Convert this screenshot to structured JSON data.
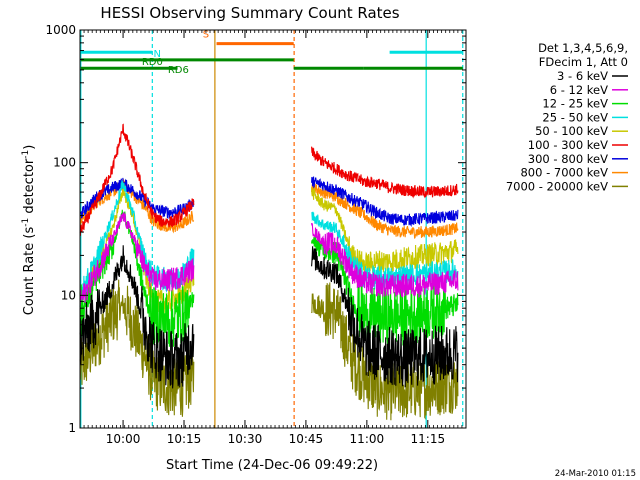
{
  "chart_data": {
    "type": "line",
    "title": "HESSI Observing Summary Count Rates",
    "xlabel": "Start Time (24-Dec-06 09:49:22)",
    "ylabel_main": "Count Rate (s",
    "ylabel_sup1": "-1",
    "ylabel_mid": " detector",
    "ylabel_sup2": "-1",
    "ylabel_end": ")",
    "yscale": "log",
    "ylim": [
      1,
      1000
    ],
    "xlim_minutes": [
      0,
      95
    ],
    "x_tick_labels": [
      {
        "label": "10:00",
        "minute": 10.6
      },
      {
        "label": "10:15",
        "minute": 25.6
      },
      {
        "label": "10:30",
        "minute": 40.6
      },
      {
        "label": "10:45",
        "minute": 55.6
      },
      {
        "label": "11:00",
        "minute": 70.6
      },
      {
        "label": "11:15",
        "minute": 85.6
      }
    ],
    "y_tick_labels": [
      {
        "label": "1",
        "value": 1
      },
      {
        "label": "10",
        "value": 10
      },
      {
        "label": "100",
        "value": 100
      },
      {
        "label": "1000",
        "value": 1000
      }
    ],
    "legend_header": [
      "Det 1,3,4,5,6,9,",
      "FDecim 1, Att 0"
    ],
    "legend_placement": "right",
    "series": [
      {
        "name": "3 - 6 keV",
        "color": "#000000",
        "pre": [
          [
            0,
            4.5
          ],
          [
            4,
            7
          ],
          [
            8,
            12
          ],
          [
            10.6,
            20
          ],
          [
            13,
            13
          ],
          [
            16,
            6
          ],
          [
            18,
            4
          ],
          [
            22,
            3.3
          ],
          [
            25,
            3.3
          ],
          [
            28,
            5
          ]
        ],
        "post": [
          [
            57,
            20
          ],
          [
            60,
            16
          ],
          [
            63,
            15
          ],
          [
            65,
            10
          ],
          [
            67,
            6.5
          ],
          [
            70,
            4
          ],
          [
            73,
            3.7
          ],
          [
            76,
            3.5
          ],
          [
            80,
            3.3
          ],
          [
            85,
            3.5
          ],
          [
            90,
            3.6
          ],
          [
            93,
            3.7
          ]
        ]
      },
      {
        "name": "6 - 12 keV",
        "color": "#dd00dd",
        "pre": [
          [
            0,
            9
          ],
          [
            4,
            15
          ],
          [
            8,
            26
          ],
          [
            10.6,
            40
          ],
          [
            13,
            28
          ],
          [
            16,
            16
          ],
          [
            18,
            13
          ],
          [
            22,
            13
          ],
          [
            25,
            14
          ],
          [
            28,
            16
          ]
        ],
        "post": [
          [
            57,
            32
          ],
          [
            60,
            25
          ],
          [
            63,
            24
          ],
          [
            65,
            19
          ],
          [
            67,
            15
          ],
          [
            70,
            12.5
          ],
          [
            73,
            12
          ],
          [
            76,
            11.8
          ],
          [
            80,
            11.8
          ],
          [
            85,
            12
          ],
          [
            90,
            12.5
          ],
          [
            93,
            13
          ]
        ]
      },
      {
        "name": "12 - 25 keV",
        "color": "#00dd00",
        "pre": [
          [
            0,
            7
          ],
          [
            4,
            13
          ],
          [
            8,
            23
          ],
          [
            10.6,
            43
          ],
          [
            13,
            26
          ],
          [
            16,
            10
          ],
          [
            18,
            7
          ],
          [
            22,
            6.5
          ],
          [
            25,
            7
          ],
          [
            28,
            9
          ]
        ],
        "post": [
          [
            57,
            27
          ],
          [
            60,
            22
          ],
          [
            63,
            21
          ],
          [
            65,
            14
          ],
          [
            67,
            9
          ],
          [
            70,
            7
          ],
          [
            73,
            7
          ],
          [
            76,
            7
          ],
          [
            80,
            7
          ],
          [
            85,
            7.5
          ],
          [
            90,
            8
          ],
          [
            93,
            8.5
          ]
        ]
      },
      {
        "name": "25 - 50 keV",
        "color": "#00e0e0",
        "pre": [
          [
            0,
            10
          ],
          [
            4,
            18
          ],
          [
            8,
            40
          ],
          [
            10.6,
            70
          ],
          [
            13,
            42
          ],
          [
            16,
            18
          ],
          [
            18,
            14
          ],
          [
            22,
            13
          ],
          [
            25,
            14
          ],
          [
            28,
            20
          ]
        ],
        "post": [
          [
            57,
            40
          ],
          [
            60,
            34
          ],
          [
            63,
            32
          ],
          [
            65,
            24
          ],
          [
            67,
            17
          ],
          [
            70,
            14
          ],
          [
            73,
            13.5
          ],
          [
            76,
            13.5
          ],
          [
            80,
            14
          ],
          [
            85,
            14.5
          ],
          [
            90,
            15
          ],
          [
            93,
            15.5
          ]
        ]
      },
      {
        "name": "50 - 100 keV",
        "color": "#c8c800",
        "pre": [
          [
            0,
            9
          ],
          [
            4,
            16
          ],
          [
            8,
            32
          ],
          [
            10.6,
            62
          ],
          [
            13,
            40
          ],
          [
            16,
            15
          ],
          [
            18,
            9
          ],
          [
            22,
            9
          ],
          [
            25,
            10
          ],
          [
            28,
            14
          ]
        ],
        "post": [
          [
            57,
            60
          ],
          [
            60,
            48
          ],
          [
            63,
            45
          ],
          [
            65,
            30
          ],
          [
            67,
            20
          ],
          [
            70,
            17
          ],
          [
            73,
            18
          ],
          [
            76,
            18
          ],
          [
            80,
            19
          ],
          [
            85,
            20
          ],
          [
            90,
            21
          ],
          [
            93,
            22
          ]
        ]
      },
      {
        "name": "100 - 300 keV",
        "color": "#ee0000",
        "pre": [
          [
            0,
            30
          ],
          [
            4,
            50
          ],
          [
            8,
            90
          ],
          [
            10.6,
            180
          ],
          [
            13,
            110
          ],
          [
            16,
            55
          ],
          [
            18,
            40
          ],
          [
            20,
            36
          ],
          [
            23,
            36
          ],
          [
            25,
            40
          ],
          [
            28,
            50
          ]
        ],
        "post": [
          [
            57,
            120
          ],
          [
            60,
            100
          ],
          [
            63,
            90
          ],
          [
            66,
            80
          ],
          [
            70,
            72
          ],
          [
            73,
            70
          ],
          [
            76,
            65
          ],
          [
            80,
            62
          ],
          [
            85,
            60
          ],
          [
            90,
            61
          ],
          [
            93,
            63
          ]
        ]
      },
      {
        "name": "300 - 800 keV",
        "color": "#0000dd",
        "pre": [
          [
            0,
            40
          ],
          [
            4,
            55
          ],
          [
            8,
            65
          ],
          [
            10.6,
            70
          ],
          [
            13,
            62
          ],
          [
            16,
            52
          ],
          [
            18,
            45
          ],
          [
            22,
            42
          ],
          [
            25,
            44
          ],
          [
            28,
            50
          ]
        ],
        "post": [
          [
            57,
            72
          ],
          [
            60,
            68
          ],
          [
            63,
            62
          ],
          [
            66,
            55
          ],
          [
            70,
            48
          ],
          [
            73,
            42
          ],
          [
            76,
            38
          ],
          [
            80,
            37
          ],
          [
            85,
            38
          ],
          [
            90,
            39
          ],
          [
            93,
            40
          ]
        ]
      },
      {
        "name": "800 - 7000 keV",
        "color": "#ff8800",
        "pre": [
          [
            0,
            36
          ],
          [
            4,
            50
          ],
          [
            8,
            60
          ],
          [
            10.6,
            68
          ],
          [
            13,
            58
          ],
          [
            16,
            46
          ],
          [
            18,
            36
          ],
          [
            22,
            32
          ],
          [
            25,
            34
          ],
          [
            28,
            40
          ]
        ],
        "post": [
          [
            57,
            65
          ],
          [
            60,
            60
          ],
          [
            63,
            55
          ],
          [
            66,
            48
          ],
          [
            70,
            40
          ],
          [
            73,
            34
          ],
          [
            76,
            31
          ],
          [
            80,
            30
          ],
          [
            85,
            30
          ],
          [
            90,
            31
          ],
          [
            93,
            32
          ]
        ]
      },
      {
        "name": "7000 - 20000 keV",
        "color": "#808000",
        "pre": [
          [
            0,
            2.8
          ],
          [
            4,
            4.5
          ],
          [
            8,
            7
          ],
          [
            10.6,
            8.5
          ],
          [
            13,
            6
          ],
          [
            16,
            3.5
          ],
          [
            18,
            2.3
          ],
          [
            22,
            2
          ],
          [
            25,
            2
          ],
          [
            28,
            2.5
          ]
        ],
        "post": [
          [
            57,
            9
          ],
          [
            60,
            8
          ],
          [
            63,
            7.5
          ],
          [
            65,
            5
          ],
          [
            67,
            3.2
          ],
          [
            70,
            2.4
          ],
          [
            73,
            2
          ],
          [
            76,
            1.9
          ],
          [
            80,
            1.9
          ],
          [
            85,
            2
          ],
          [
            90,
            2.1
          ],
          [
            93,
            2.2
          ]
        ]
      }
    ],
    "vertical_markers": [
      {
        "minute": 0.2,
        "color": "#00e0e0",
        "style": "solid"
      },
      {
        "minute": 17.8,
        "color": "#00e0e0",
        "style": "dashed"
      },
      {
        "minute": 85.2,
        "color": "#00e0e0",
        "style": "solid"
      },
      {
        "minute": 94.2,
        "color": "#00e0e0",
        "style": "dashed"
      },
      {
        "minute": 33.2,
        "color": "#cc8800",
        "style": "solid"
      },
      {
        "minute": 52.7,
        "color": "#ff6600",
        "style": "dashed"
      }
    ],
    "flag_bars": [
      {
        "label": "N",
        "color": "#00e0e0",
        "ylevel": 680,
        "segments": [
          [
            0.2,
            17.8
          ],
          [
            76.2,
            94.2
          ]
        ],
        "label_minute": 19.0
      },
      {
        "label": "S",
        "color": "#ff6600",
        "ylevel": 790,
        "segments": [
          [
            33.6,
            52.6
          ]
        ],
        "label_minute": 31.0
      },
      {
        "label": "RD0",
        "color": "#008800",
        "ylevel": 595,
        "segments": [
          [
            0.2,
            17.6
          ],
          [
            17.6,
            52.6
          ]
        ],
        "label_minute": 17.8
      },
      {
        "label": "RD6",
        "color": "#008800",
        "ylevel": 515,
        "segments": [
          [
            0.2,
            24.0
          ],
          [
            52.6,
            69.8
          ],
          [
            69.8,
            94.2
          ]
        ],
        "label_minute": 24.2
      }
    ],
    "gap_minutes": [
      28.2,
      56.6
    ]
  },
  "footer": {
    "timestamp": "24-Mar-2010 01:15"
  }
}
